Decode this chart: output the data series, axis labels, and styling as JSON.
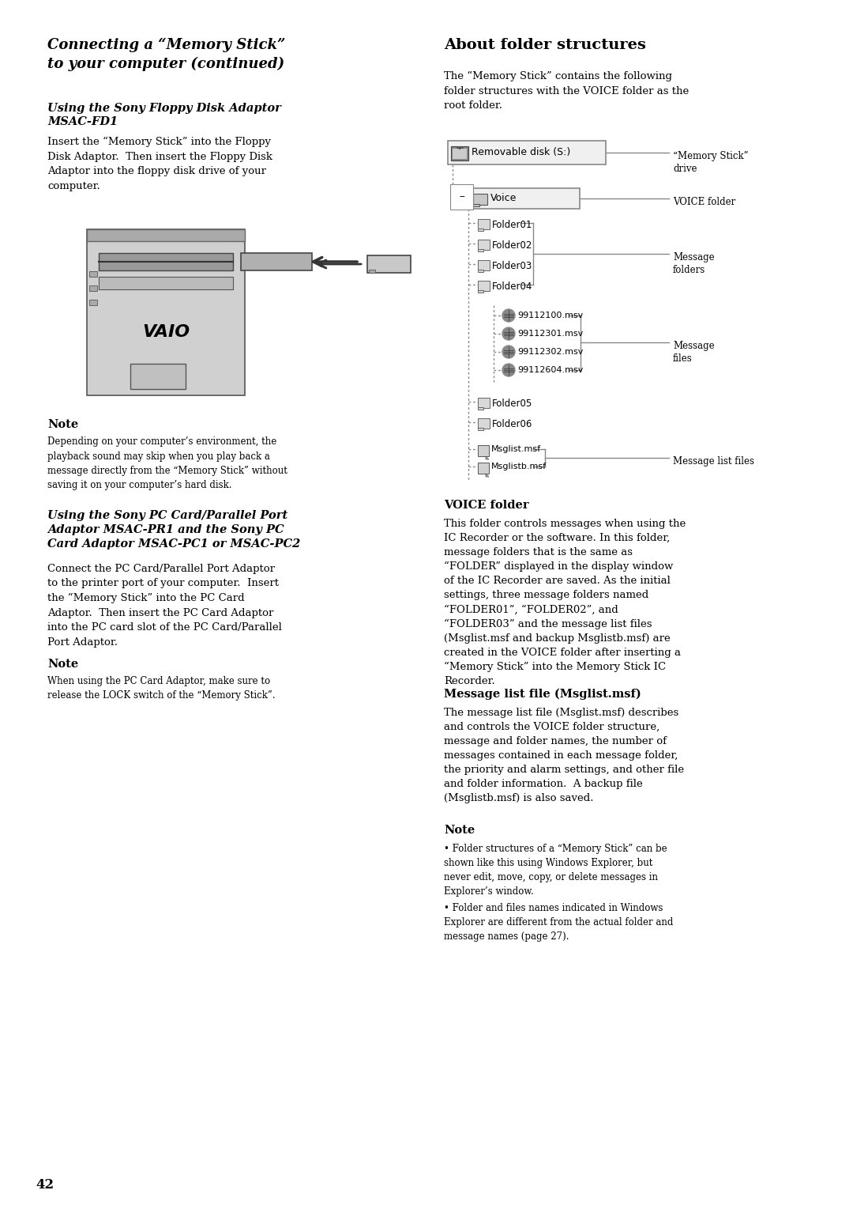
{
  "page_number": "42",
  "background_color": "#ffffff",
  "left_column": {
    "main_title": "Connecting a “Memory Stick”\nto your computer (continued)",
    "section1_title": "Using the Sony Floppy Disk Adaptor\nMSAC-FD1",
    "section1_body": "Insert the “Memory Stick” into the Floppy\nDisk Adaptor.  Then insert the Floppy Disk\nAdaptor into the floppy disk drive of your\ncomputer.",
    "note1_title": "Note",
    "note1_body": "Depending on your computer’s environment, the\nplayback sound may skip when you play back a\nmessage directly from the “Memory Stick” without\nsaving it on your computer’s hard disk.",
    "section2_title": "Using the Sony PC Card/Parallel Port\nAdaptor MSAC-PR1 and the Sony PC\nCard Adaptor MSAC-PC1 or MSAC-PC2",
    "section2_body": "Connect the PC Card/Parallel Port Adaptor\nto the printer port of your computer.  Insert\nthe “Memory Stick” into the PC Card\nAdaptor.  Then insert the PC Card Adaptor\ninto the PC card slot of the PC Card/Parallel\nPort Adaptor.",
    "note2_title": "Note",
    "note2_body": "When using the PC Card Adaptor, make sure to\nrelease the LOCK switch of the “Memory Stick”."
  },
  "right_column": {
    "section3_title": "About folder structures",
    "section3_body": "The “Memory Stick” contains the following\nfolder structures with the VOICE folder as the\nroot folder.",
    "label_drive": "“Memory Stick”\ndrive",
    "label_voice": "VOICE folder",
    "label_message_folders": "Message\nfolders",
    "label_message_files": "Message\nfiles",
    "label_message_list": "Message list files",
    "section4_title": "VOICE folder",
    "section4_body": "This folder controls messages when using the\nIC Recorder or the software. In this folder,\nmessage folders that is the same as\n“FOLDER” displayed in the display window\nof the IC Recorder are saved. As the initial\nsettings, three message folders named\n“FOLDER01”, “FOLDER02”, and\n“FOLDER03” and the message list files\n(Msglist.msf and backup Msglistb.msf) are\ncreated in the VOICE folder after inserting a\n“Memory Stick” into the Memory Stick IC\nRecorder.",
    "section5_title": "Message list file (Msglist.msf)",
    "section5_body": "The message list file (Msglist.msf) describes\nand controls the VOICE folder structure,\nmessage and folder names, the number of\nmessages contained in each message folder,\nthe priority and alarm settings, and other file\nand folder information.  A backup file\n(Msglistb.msf) is also saved.",
    "note3_title": "Note",
    "note3_body_bullet1": "Folder structures of a “Memory Stick” can be\nshown like this using Windows Explorer, but\nnever edit, move, copy, or delete messages in\nExplorer’s window.",
    "note3_body_bullet2": "Folder and files names indicated in Windows\nExplorer are different from the actual folder and\nmessage names (page 27)."
  }
}
